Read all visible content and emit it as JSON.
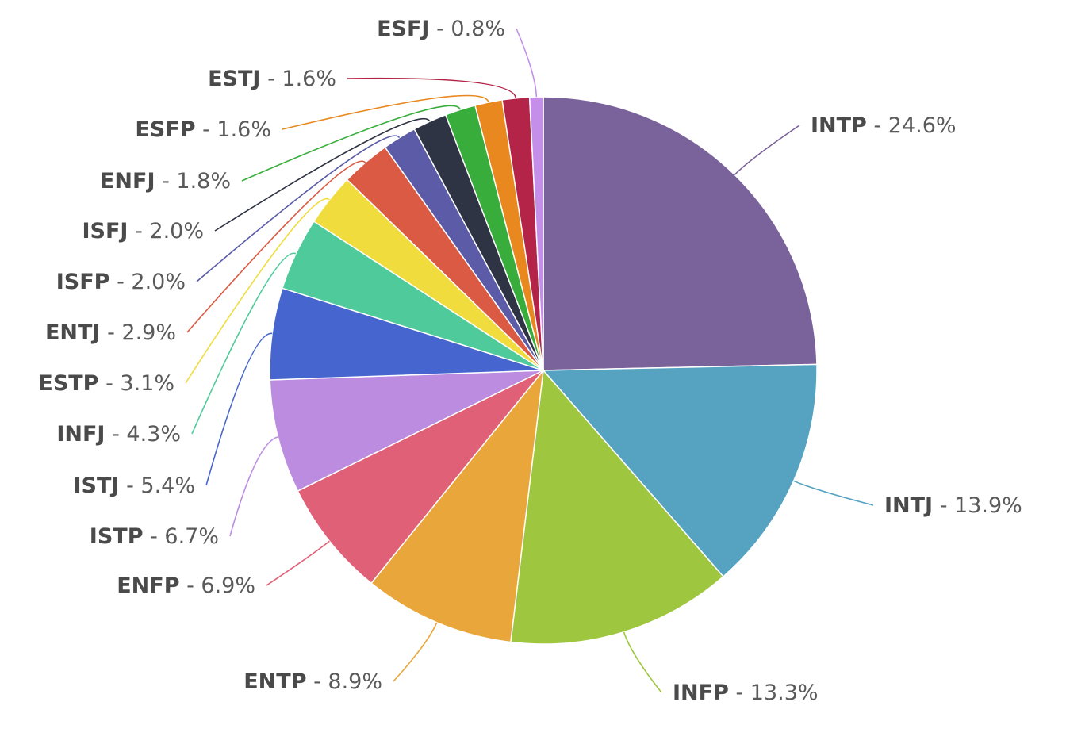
{
  "chart_data": {
    "type": "pie",
    "title": "",
    "label_separator": " - ",
    "slices": [
      {
        "label": "INTP",
        "value": 24.6,
        "value_label": "24.6%",
        "color": "#7a629b"
      },
      {
        "label": "INTJ",
        "value": 13.9,
        "value_label": "13.9%",
        "color": "#56a3c1"
      },
      {
        "label": "INFP",
        "value": 13.3,
        "value_label": "13.3%",
        "color": "#9ec63e"
      },
      {
        "label": "ENTP",
        "value": 8.9,
        "value_label": "8.9%",
        "color": "#e9a63a"
      },
      {
        "label": "ENFP",
        "value": 6.9,
        "value_label": "6.9%",
        "color": "#e06077"
      },
      {
        "label": "ISTP",
        "value": 6.7,
        "value_label": "6.7%",
        "color": "#bb8ce0"
      },
      {
        "label": "ISTJ",
        "value": 5.4,
        "value_label": "5.4%",
        "color": "#4765cf"
      },
      {
        "label": "INFJ",
        "value": 4.3,
        "value_label": "4.3%",
        "color": "#4fcb9b"
      },
      {
        "label": "ESTP",
        "value": 3.1,
        "value_label": "3.1%",
        "color": "#f1dc3d"
      },
      {
        "label": "ENTJ",
        "value": 2.9,
        "value_label": "2.9%",
        "color": "#db5a43"
      },
      {
        "label": "ISFP",
        "value": 2.0,
        "value_label": "2.0%",
        "color": "#5b5ba8"
      },
      {
        "label": "ISFJ",
        "value": 2.0,
        "value_label": "2.0%",
        "color": "#2f3445"
      },
      {
        "label": "ENFJ",
        "value": 1.8,
        "value_label": "1.8%",
        "color": "#39ad3c"
      },
      {
        "label": "ESFP",
        "value": 1.6,
        "value_label": "1.6%",
        "color": "#e8881f"
      },
      {
        "label": "ESTJ",
        "value": 1.6,
        "value_label": "1.6%",
        "color": "#b42448"
      },
      {
        "label": "ESFJ",
        "value": 0.8,
        "value_label": "0.8%",
        "color": "#c58ee8"
      }
    ],
    "legend": "none"
  }
}
